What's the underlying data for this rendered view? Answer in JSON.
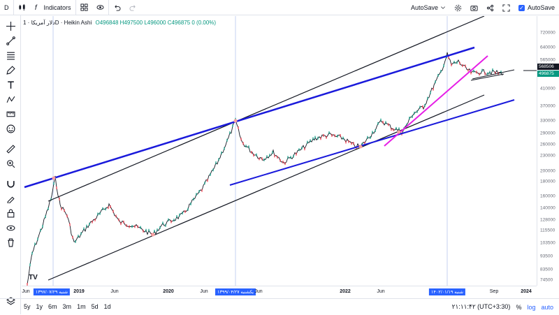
{
  "toolbar": {
    "symbol_short": "D",
    "indicators_label": "Indicators",
    "autosave_menu_label": "AutoSave",
    "autosave_check_label": "AutoSave"
  },
  "legend": {
    "title": "دلار آمریکا · 1D · Heikin Ashi",
    "ohlc": "O496848 H497500 L496000 C496875 0 (0.00%)"
  },
  "price_scale": {
    "labels": [
      "720000",
      "640000",
      "565000",
      "410000",
      "370000",
      "330000",
      "290000",
      "260000",
      "230000",
      "200000",
      "180000",
      "160000",
      "140000",
      "128000",
      "115500",
      "103500",
      "93500",
      "83500",
      "74500"
    ],
    "tag_upper": "568506",
    "tag_lower": "496875",
    "tag_upper_color": "#131722",
    "tag_lower_color": "#089981"
  },
  "time_scale": {
    "labels": [
      {
        "text": "Jun",
        "bold": false
      },
      {
        "text": "۱۳۹۷/۰۷/۲۹ شنبه",
        "bold": false,
        "highlight": true
      },
      {
        "text": "2019",
        "bold": true
      },
      {
        "text": "Jun",
        "bold": false
      },
      {
        "text": "2020",
        "bold": true
      },
      {
        "text": "Jun",
        "bold": false
      },
      {
        "text": "۱۳۹۹/۰۴/۲۷ یکشنبه",
        "bold": false,
        "highlight": true
      },
      {
        "text": "Jun",
        "bold": false
      },
      {
        "text": "2022",
        "bold": true
      },
      {
        "text": "Jun",
        "bold": false
      },
      {
        "text": "۱۴۰۲/۰۱/۱۹ شنبه",
        "bold": false,
        "highlight": true
      },
      {
        "text": "Sep",
        "bold": false
      },
      {
        "text": "2024",
        "bold": true
      }
    ]
  },
  "bottom_bar": {
    "ranges": [
      "5y",
      "1y",
      "6m",
      "3m",
      "1m",
      "5d",
      "1d"
    ],
    "clock": "۲۱:۱۱:۴۲ (UTC+3:30)",
    "percent_label": "%",
    "log_label": "log",
    "auto_label": "auto"
  },
  "colors": {
    "accent": "#2962ff",
    "trend_blue": "#1a1adb",
    "trend_magenta": "#e61ee6",
    "up": "#089981",
    "down": "#f23645"
  },
  "left_tools": [
    "crosshair-icon",
    "trendline-icon",
    "fib-icon",
    "brush-icon",
    "text-icon",
    "pattern-icon",
    "measure-icon",
    "emoji-icon",
    "ruler-icon",
    "zoom-icon",
    "magnet-icon",
    "lock-drawing-icon",
    "lock-icon",
    "eye-icon",
    "trash-icon",
    "layers-icon"
  ]
}
